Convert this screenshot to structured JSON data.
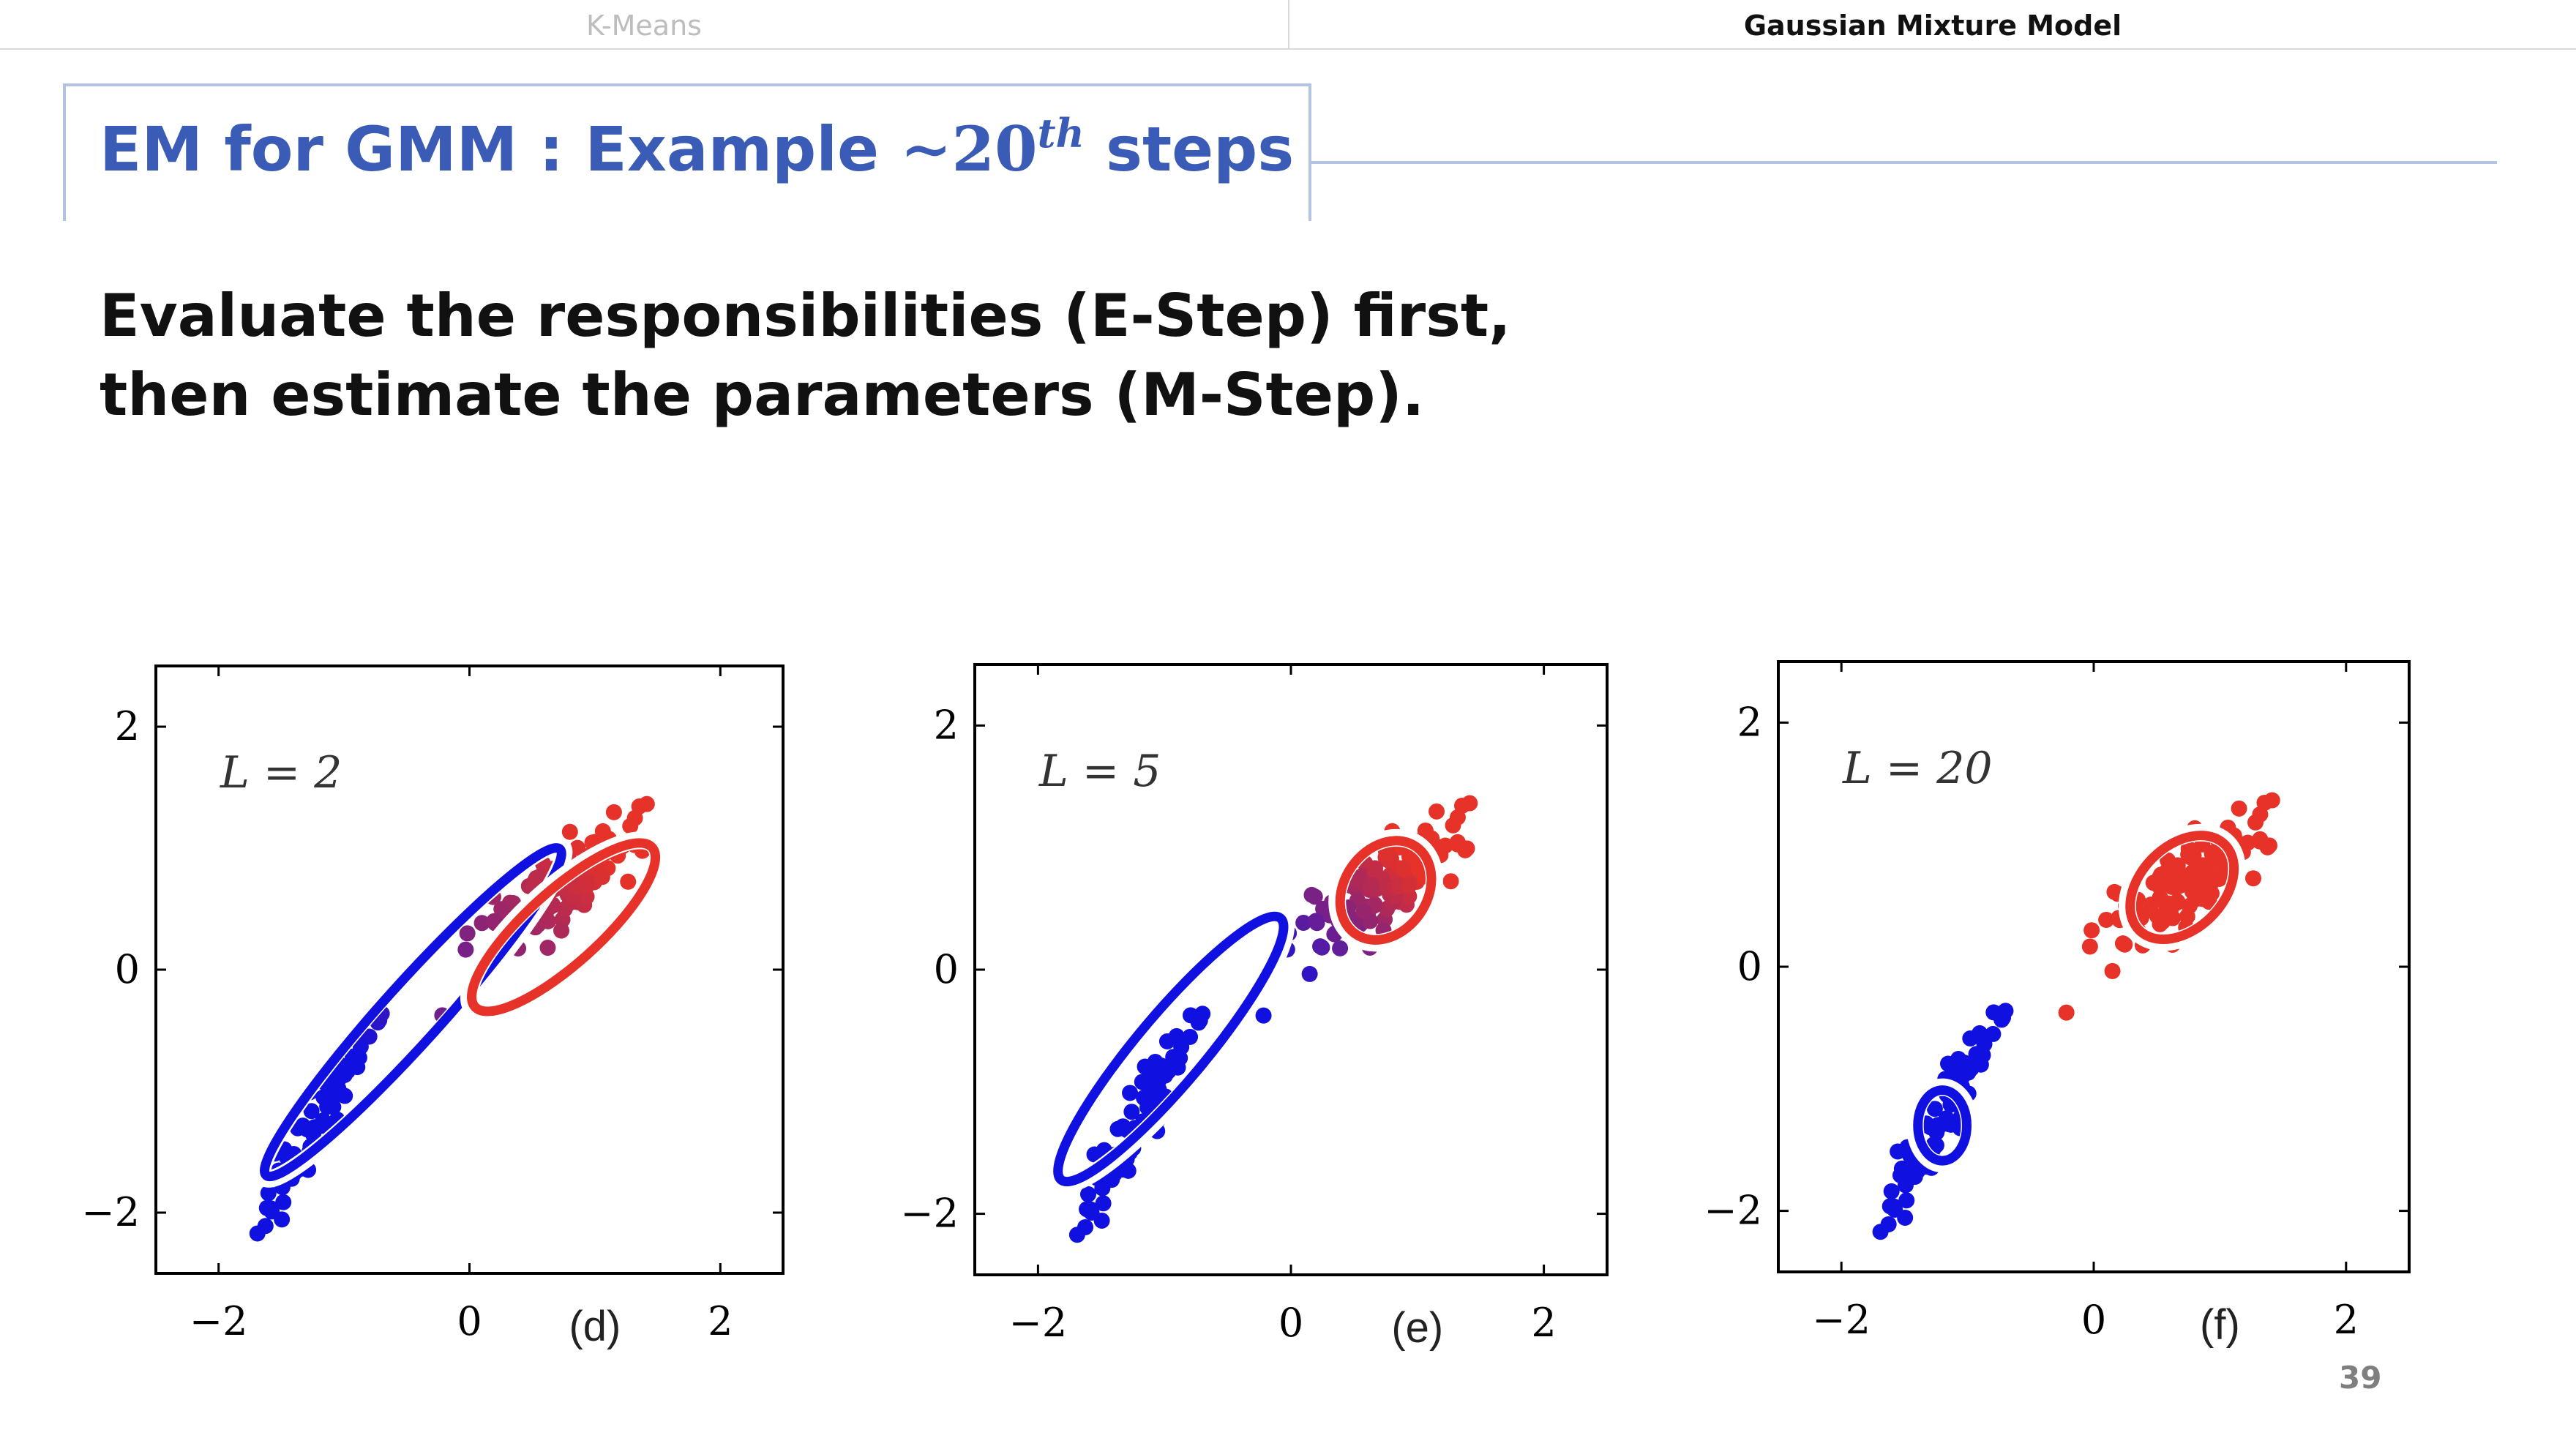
{
  "nav": {
    "tabs": [
      {
        "label": "K-Means",
        "active": false
      },
      {
        "label": "Gaussian Mixture Model",
        "active": true
      }
    ]
  },
  "slide": {
    "title_prefix": "EM for GMM : Example ",
    "title_math_tilde": "∼",
    "title_math_number": "20",
    "title_math_sup": "th",
    "title_suffix": " steps",
    "subtitle_line1": "Evaluate the responsibilities (E-Step) first,",
    "subtitle_line2": "then estimate the parameters (M-Step).",
    "page_number": "39"
  },
  "colors": {
    "title": "#3a5bb6",
    "cluster_blue": "#1010e0",
    "cluster_red": "#e63228",
    "border": "#b4c3e0"
  },
  "chart_data": [
    {
      "type": "scatter",
      "panel_label": "(d)",
      "annotation": "L = 2",
      "xlim": [
        -2.5,
        2.5
      ],
      "ylim": [
        -2.5,
        2.5
      ],
      "xticks": [
        "−2",
        "0",
        "2"
      ],
      "yticks": [
        "2",
        "0",
        "−2"
      ],
      "ellipses": [
        {
          "cluster": "blue",
          "center": [
            -0.45,
            -0.35
          ],
          "semi_axes": [
            1.75,
            0.24
          ],
          "angle_deg": 48
        },
        {
          "cluster": "red",
          "center": [
            0.75,
            0.35
          ],
          "semi_axes": [
            0.95,
            0.3
          ],
          "angle_deg": 42
        }
      ]
    },
    {
      "type": "scatter",
      "panel_label": "(e)",
      "annotation": "L = 5",
      "xlim": [
        -2.5,
        2.5
      ],
      "ylim": [
        -2.5,
        2.5
      ],
      "xticks": [
        "−2",
        "0",
        "2"
      ],
      "yticks": [
        "2",
        "0",
        "−2"
      ],
      "ellipses": [
        {
          "cluster": "blue",
          "center": [
            -0.95,
            -0.65
          ],
          "semi_axes": [
            1.35,
            0.28
          ],
          "angle_deg": 50
        },
        {
          "cluster": "red",
          "center": [
            0.75,
            0.65
          ],
          "semi_axes": [
            0.42,
            0.34
          ],
          "angle_deg": 55
        }
      ]
    },
    {
      "type": "scatter",
      "panel_label": "(f)",
      "annotation": "L = 20",
      "xlim": [
        -2.5,
        2.5
      ],
      "ylim": [
        -2.5,
        2.5
      ],
      "xticks": [
        "−2",
        "0",
        "2"
      ],
      "yticks": [
        "2",
        "0",
        "−2"
      ],
      "ellipses": [
        {
          "cluster": "blue",
          "center": [
            -1.2,
            -1.3
          ],
          "semi_axes": [
            0.28,
            0.2
          ],
          "angle_deg": 90
        },
        {
          "cluster": "red",
          "center": [
            0.7,
            0.65
          ],
          "semi_axes": [
            0.48,
            0.34
          ],
          "angle_deg": 45
        }
      ]
    }
  ]
}
